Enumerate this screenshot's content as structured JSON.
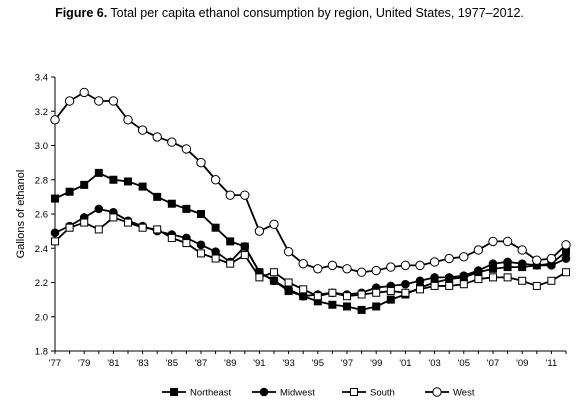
{
  "figure": {
    "label": "Figure 6.",
    "caption": "Total per capita ethanol consumption by region, United States, 1977–2012."
  },
  "chart_data": {
    "type": "line",
    "title": "Figure 6. Total per capita ethanol consumption by region, United States, 1977–2012.",
    "xlabel": "",
    "ylabel": "Gallons of ethanol",
    "ylim": [
      1.8,
      3.4
    ],
    "xlim": [
      1977,
      2012
    ],
    "y_ticks": [
      "1.8",
      "2.0",
      "2.2",
      "2.4",
      "2.6",
      "2.8",
      "3.0",
      "3.2",
      "3.4"
    ],
    "x_tick_labels": [
      "'77",
      "'79",
      "'81",
      "'83",
      "'85",
      "'87",
      "'89",
      "'91",
      "'93",
      "'95",
      "'97",
      "'99",
      "'01",
      "'03",
      "'05",
      "'07",
      "'09",
      "'11"
    ],
    "x_tick_years": [
      1977,
      1979,
      1981,
      1983,
      1985,
      1987,
      1989,
      1991,
      1993,
      1995,
      1997,
      1999,
      2001,
      2003,
      2005,
      2007,
      2009,
      2011
    ],
    "grid": false,
    "legend_position": "bottom",
    "x": [
      1977,
      1978,
      1979,
      1980,
      1981,
      1982,
      1983,
      1984,
      1985,
      1986,
      1987,
      1988,
      1989,
      1990,
      1991,
      1992,
      1993,
      1994,
      1995,
      1996,
      1997,
      1998,
      1999,
      2000,
      2001,
      2002,
      2003,
      2004,
      2005,
      2006,
      2007,
      2008,
      2009,
      2010,
      2011,
      2012
    ],
    "series": [
      {
        "name": "Northeast",
        "marker": "filled-square",
        "values": [
          2.69,
          2.73,
          2.77,
          2.84,
          2.8,
          2.79,
          2.76,
          2.7,
          2.66,
          2.63,
          2.6,
          2.52,
          2.44,
          2.41,
          2.26,
          2.21,
          2.15,
          2.12,
          2.09,
          2.07,
          2.06,
          2.04,
          2.06,
          2.1,
          2.13,
          2.17,
          2.2,
          2.22,
          2.23,
          2.26,
          2.28,
          2.29,
          2.29,
          2.3,
          2.31,
          2.38
        ]
      },
      {
        "name": "Midwest",
        "marker": "filled-circle",
        "values": [
          2.49,
          2.53,
          2.58,
          2.63,
          2.61,
          2.56,
          2.53,
          2.5,
          2.48,
          2.46,
          2.42,
          2.38,
          2.32,
          2.41,
          2.26,
          2.21,
          2.16,
          2.12,
          2.13,
          2.14,
          2.13,
          2.14,
          2.17,
          2.18,
          2.19,
          2.21,
          2.23,
          2.23,
          2.24,
          2.27,
          2.31,
          2.32,
          2.31,
          2.3,
          2.3,
          2.34
        ]
      },
      {
        "name": "South",
        "marker": "open-square",
        "values": [
          2.44,
          2.52,
          2.55,
          2.51,
          2.58,
          2.55,
          2.52,
          2.51,
          2.46,
          2.43,
          2.37,
          2.34,
          2.31,
          2.36,
          2.23,
          2.26,
          2.2,
          2.16,
          2.12,
          2.14,
          2.12,
          2.13,
          2.14,
          2.15,
          2.14,
          2.16,
          2.18,
          2.18,
          2.19,
          2.22,
          2.23,
          2.23,
          2.21,
          2.18,
          2.21,
          2.26
        ]
      },
      {
        "name": "West",
        "marker": "open-circle",
        "values": [
          3.15,
          3.26,
          3.31,
          3.26,
          3.26,
          3.15,
          3.09,
          3.05,
          3.02,
          2.98,
          2.9,
          2.8,
          2.71,
          2.71,
          2.5,
          2.54,
          2.38,
          2.31,
          2.28,
          2.3,
          2.28,
          2.26,
          2.27,
          2.29,
          2.3,
          2.3,
          2.32,
          2.34,
          2.35,
          2.39,
          2.44,
          2.44,
          2.39,
          2.33,
          2.34,
          2.42
        ]
      }
    ]
  }
}
